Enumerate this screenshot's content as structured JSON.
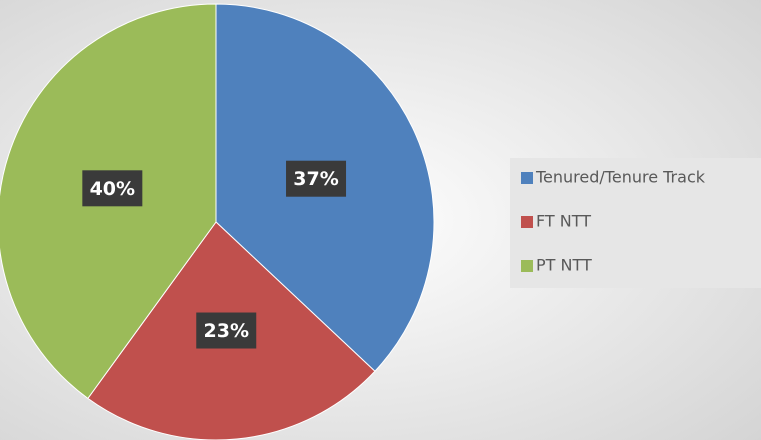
{
  "chart_data": {
    "type": "pie",
    "categories": [
      "Tenured/Tenure Track",
      "FT NTT",
      "PT NTT"
    ],
    "values": [
      37,
      23,
      40
    ],
    "value_labels": [
      "37%",
      "23%",
      "40%"
    ],
    "colors": [
      "#4f81bd",
      "#c0504d",
      "#9bbb59"
    ],
    "legend": "right"
  }
}
